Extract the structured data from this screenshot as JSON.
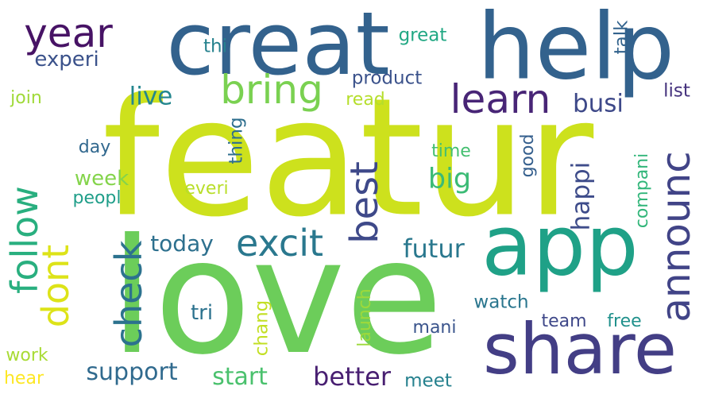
{
  "words": [
    {
      "text": "featur",
      "color": "#cde11d",
      "rotated": false
    },
    {
      "text": "love",
      "color": "#6ccd5a",
      "rotated": false
    },
    {
      "text": "creat",
      "color": "#33628d",
      "rotated": false
    },
    {
      "text": "help",
      "color": "#33628d",
      "rotated": false
    },
    {
      "text": "app",
      "color": "#1fa187",
      "rotated": false
    },
    {
      "text": "share",
      "color": "#433e85",
      "rotated": false
    },
    {
      "text": "year",
      "color": "#471365",
      "rotated": false
    },
    {
      "text": "bring",
      "color": "#7ad151",
      "rotated": false
    },
    {
      "text": "learn",
      "color": "#482576",
      "rotated": false
    },
    {
      "text": "announc",
      "color": "#414487",
      "rotated": true
    },
    {
      "text": "excit",
      "color": "#2a788e",
      "rotated": false
    },
    {
      "text": "best",
      "color": "#3e4989",
      "rotated": true
    },
    {
      "text": "follow",
      "color": "#29af7f",
      "rotated": true
    },
    {
      "text": "check",
      "color": "#2c728e",
      "rotated": true
    },
    {
      "text": "dont",
      "color": "#dde318",
      "rotated": true
    },
    {
      "text": "experi",
      "color": "#3b528b",
      "rotated": false
    },
    {
      "text": "live",
      "color": "#24868e",
      "rotated": false
    },
    {
      "text": "busi",
      "color": "#3e4989",
      "rotated": false
    },
    {
      "text": "product",
      "color": "#3b528b",
      "rotated": false
    },
    {
      "text": "great",
      "color": "#22a884",
      "rotated": false
    },
    {
      "text": "thi",
      "color": "#26828e",
      "rotated": false
    },
    {
      "text": "talk",
      "color": "#33638d",
      "rotated": true
    },
    {
      "text": "list",
      "color": "#46337e",
      "rotated": false
    },
    {
      "text": "read",
      "color": "#b5de2b",
      "rotated": false
    },
    {
      "text": "join",
      "color": "#a0da39",
      "rotated": false
    },
    {
      "text": "thing",
      "color": "#2e6e8e",
      "rotated": true
    },
    {
      "text": "day",
      "color": "#31688e",
      "rotated": false
    },
    {
      "text": "time",
      "color": "#44bf70",
      "rotated": false
    },
    {
      "text": "good",
      "color": "#355f8d",
      "rotated": true
    },
    {
      "text": "big",
      "color": "#3bbb75",
      "rotated": false
    },
    {
      "text": "week",
      "color": "#84d44b",
      "rotated": false
    },
    {
      "text": "everi",
      "color": "#b8de29",
      "rotated": false
    },
    {
      "text": "peopl",
      "color": "#1f9e89",
      "rotated": false
    },
    {
      "text": "happi",
      "color": "#3e4c8a",
      "rotated": true
    },
    {
      "text": "compani",
      "color": "#32b67a",
      "rotated": true
    },
    {
      "text": "today",
      "color": "#2d708e",
      "rotated": false
    },
    {
      "text": "futur",
      "color": "#2a788e",
      "rotated": false
    },
    {
      "text": "tri",
      "color": "#2c728e",
      "rotated": false
    },
    {
      "text": "chang",
      "color": "#c2df23",
      "rotated": true
    },
    {
      "text": "launch",
      "color": "#9dd93b",
      "rotated": true
    },
    {
      "text": "watch",
      "color": "#2a768e",
      "rotated": false
    },
    {
      "text": "mani",
      "color": "#3a548c",
      "rotated": false
    },
    {
      "text": "team",
      "color": "#3f4889",
      "rotated": false
    },
    {
      "text": "free",
      "color": "#21918c",
      "rotated": false
    },
    {
      "text": "work",
      "color": "#a8db34",
      "rotated": false
    },
    {
      "text": "support",
      "color": "#306a8e",
      "rotated": false
    },
    {
      "text": "start",
      "color": "#4ac16d",
      "rotated": false
    },
    {
      "text": "better",
      "color": "#481f71",
      "rotated": false
    },
    {
      "text": "meet",
      "color": "#26818e",
      "rotated": false
    },
    {
      "text": "hear",
      "color": "#fde725",
      "rotated": false
    }
  ]
}
